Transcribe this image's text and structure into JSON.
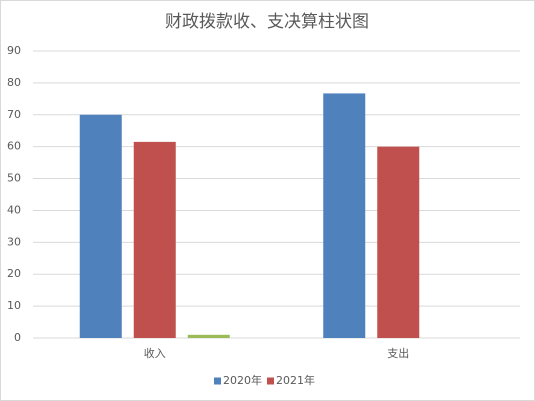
{
  "chart_data": {
    "type": "bar",
    "title": "财政拨款收、支决算柱状图",
    "categories": [
      "收入",
      "支出"
    ],
    "series": [
      {
        "name": "2020年",
        "color": "#4f81bd",
        "values": [
          70,
          76.7
        ]
      },
      {
        "name": "2021年",
        "color": "#c0504d",
        "values": [
          61.5,
          60
        ]
      },
      {
        "color": "#9bbb59",
        "values": [
          1,
          null
        ]
      }
    ],
    "ylim": [
      0,
      90
    ],
    "yticks": [
      0,
      10,
      20,
      30,
      40,
      50,
      60,
      70,
      80,
      90
    ],
    "grid": true,
    "legend": "bottom"
  }
}
